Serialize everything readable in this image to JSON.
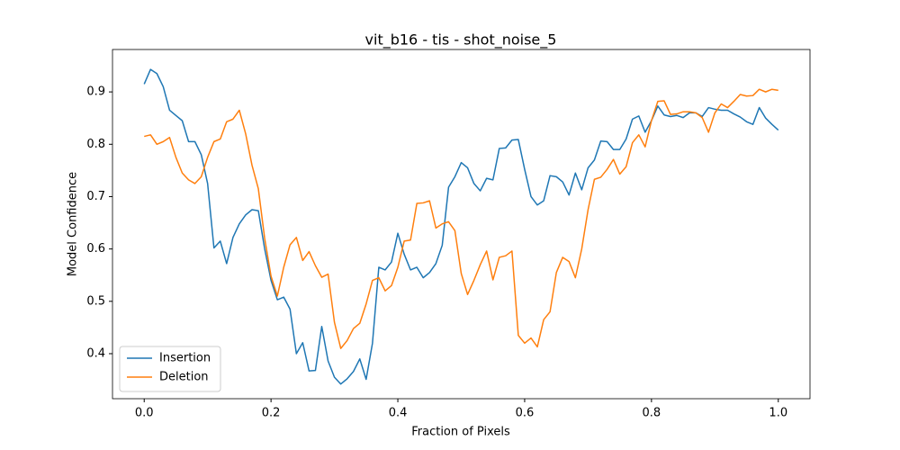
{
  "chart_data": {
    "type": "line",
    "title": "vit_b16 - tis - shot_noise_5",
    "xlabel": "Fraction of Pixels",
    "ylabel": "Model Confidence",
    "x": [
      0,
      0.01,
      0.02,
      0.03,
      0.04,
      0.05,
      0.06,
      0.07,
      0.08,
      0.09,
      0.1,
      0.11,
      0.12,
      0.13,
      0.14,
      0.15,
      0.16,
      0.17,
      0.18,
      0.19,
      0.2,
      0.21,
      0.22,
      0.23,
      0.24,
      0.25,
      0.26,
      0.27,
      0.28,
      0.29,
      0.3,
      0.31,
      0.32,
      0.33,
      0.34,
      0.35,
      0.36,
      0.37,
      0.38,
      0.39,
      0.4,
      0.41,
      0.42,
      0.43,
      0.44,
      0.45,
      0.46,
      0.47,
      0.48,
      0.49,
      0.5,
      0.51,
      0.52,
      0.53,
      0.54,
      0.55,
      0.56,
      0.57,
      0.58,
      0.59,
      0.6,
      0.61,
      0.62,
      0.63,
      0.64,
      0.65,
      0.66,
      0.67,
      0.68,
      0.69,
      0.7,
      0.71,
      0.72,
      0.73,
      0.74,
      0.75,
      0.76,
      0.77,
      0.78,
      0.79,
      0.8,
      0.81,
      0.82,
      0.83,
      0.84,
      0.85,
      0.86,
      0.87,
      0.88,
      0.89,
      0.9,
      0.91,
      0.92,
      0.93,
      0.94,
      0.95,
      0.96,
      0.97,
      0.98,
      0.99,
      1
    ],
    "series": [
      {
        "name": "Insertion",
        "color": "#1f77b4",
        "values": [
          0.915,
          0.943,
          0.935,
          0.91,
          0.865,
          0.855,
          0.845,
          0.805,
          0.805,
          0.78,
          0.725,
          0.602,
          0.615,
          0.572,
          0.622,
          0.648,
          0.665,
          0.675,
          0.673,
          0.6,
          0.54,
          0.503,
          0.508,
          0.485,
          0.4,
          0.421,
          0.367,
          0.368,
          0.452,
          0.386,
          0.355,
          0.342,
          0.352,
          0.366,
          0.39,
          0.351,
          0.42,
          0.565,
          0.56,
          0.575,
          0.63,
          0.59,
          0.56,
          0.565,
          0.545,
          0.555,
          0.572,
          0.607,
          0.718,
          0.738,
          0.765,
          0.755,
          0.725,
          0.711,
          0.735,
          0.732,
          0.792,
          0.793,
          0.808,
          0.809,
          0.752,
          0.7,
          0.684,
          0.692,
          0.74,
          0.738,
          0.728,
          0.703,
          0.745,
          0.713,
          0.755,
          0.77,
          0.806,
          0.805,
          0.79,
          0.79,
          0.81,
          0.848,
          0.854,
          0.823,
          0.845,
          0.873,
          0.856,
          0.853,
          0.855,
          0.851,
          0.86,
          0.86,
          0.853,
          0.87,
          0.867,
          0.865,
          0.865,
          0.858,
          0.852,
          0.843,
          0.838,
          0.87,
          0.85,
          0.838,
          0.827
        ]
      },
      {
        "name": "Deletion",
        "color": "#ff7f0e",
        "values": [
          0.815,
          0.818,
          0.8,
          0.805,
          0.813,
          0.775,
          0.745,
          0.732,
          0.725,
          0.738,
          0.775,
          0.805,
          0.81,
          0.843,
          0.848,
          0.865,
          0.82,
          0.76,
          0.715,
          0.62,
          0.548,
          0.51,
          0.565,
          0.608,
          0.622,
          0.578,
          0.595,
          0.568,
          0.546,
          0.552,
          0.46,
          0.41,
          0.425,
          0.448,
          0.458,
          0.495,
          0.54,
          0.545,
          0.52,
          0.53,
          0.565,
          0.615,
          0.617,
          0.687,
          0.688,
          0.692,
          0.64,
          0.648,
          0.652,
          0.635,
          0.553,
          0.513,
          0.54,
          0.57,
          0.596,
          0.541,
          0.584,
          0.587,
          0.596,
          0.435,
          0.42,
          0.43,
          0.413,
          0.465,
          0.48,
          0.555,
          0.584,
          0.576,
          0.545,
          0.6,
          0.675,
          0.733,
          0.737,
          0.752,
          0.771,
          0.743,
          0.757,
          0.803,
          0.818,
          0.795,
          0.845,
          0.882,
          0.883,
          0.857,
          0.858,
          0.862,
          0.862,
          0.86,
          0.851,
          0.823,
          0.86,
          0.877,
          0.87,
          0.882,
          0.895,
          0.892,
          0.893,
          0.905,
          0.9,
          0.905,
          0.903
        ]
      }
    ],
    "xlim": [
      -0.05,
      1.05
    ],
    "ylim": [
      0.314,
      0.981
    ],
    "xticks": [
      {
        "value": 0,
        "label": "0.0"
      },
      0.2,
      0.4,
      0.6,
      0.8,
      {
        "value": 1,
        "label": "1.0"
      }
    ],
    "yticks": [
      0.4,
      0.5,
      0.6,
      0.7,
      0.8,
      0.9
    ],
    "legend": "lower left"
  }
}
